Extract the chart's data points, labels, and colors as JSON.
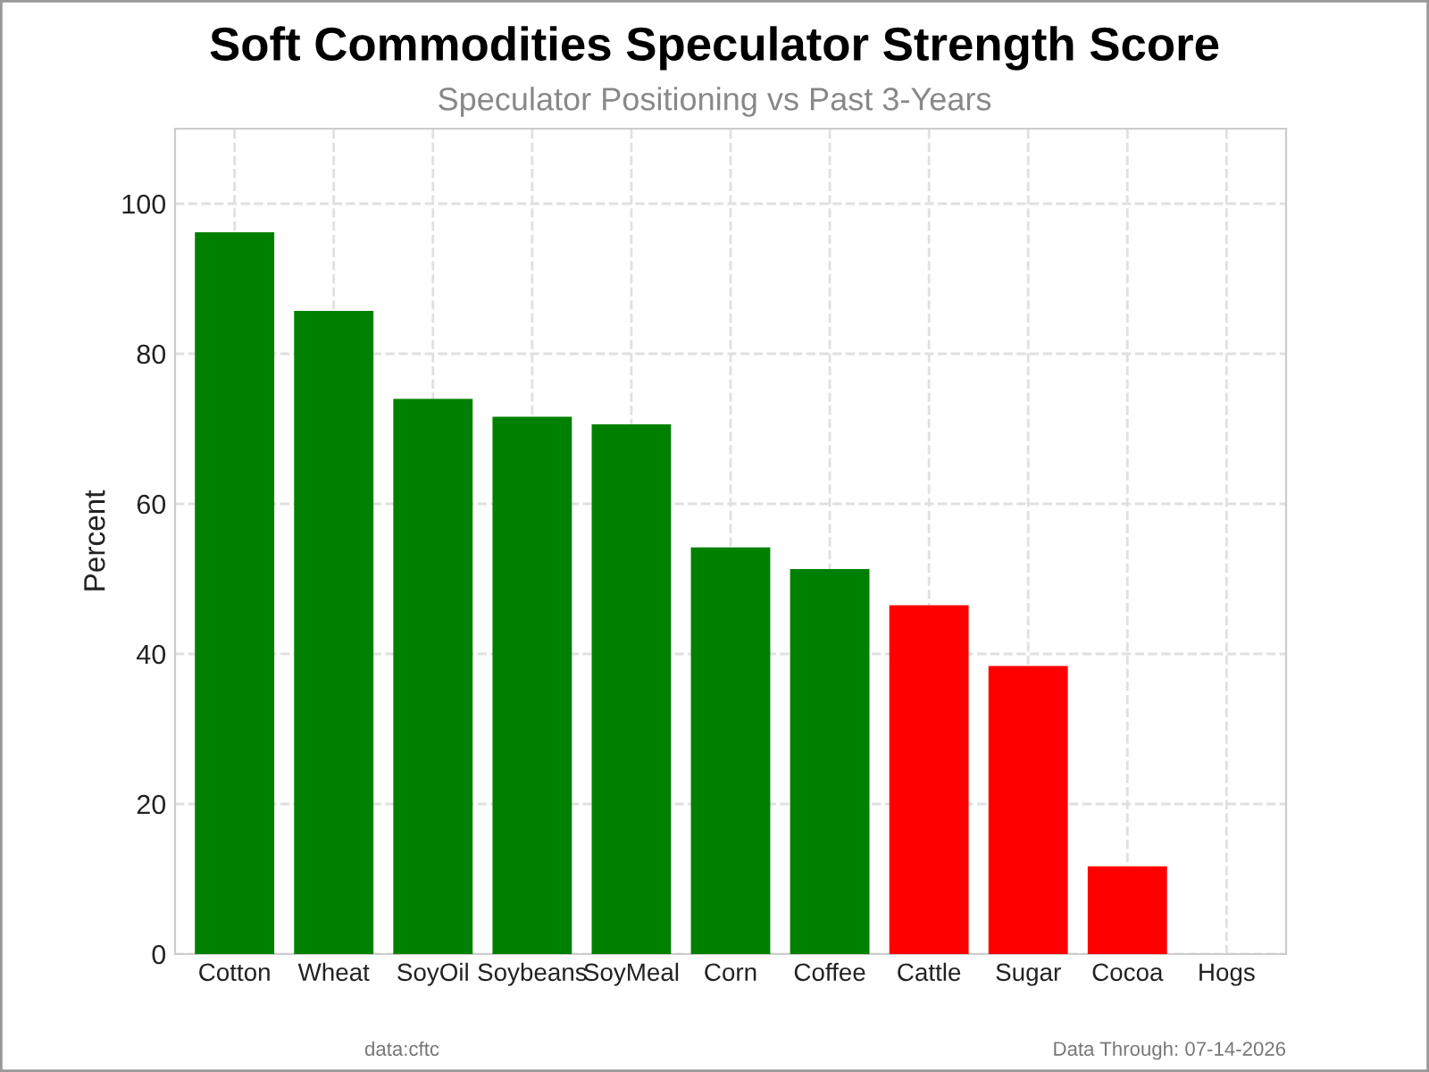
{
  "chart_data": {
    "type": "bar",
    "title": "Soft Commodities Speculator Strength Score",
    "subtitle": "Speculator Positioning vs Past 3-Years",
    "ylabel": "Percent",
    "categories": [
      "Cotton",
      "Wheat",
      "SoyOil",
      "Soybeans",
      "SoyMeal",
      "Corn",
      "Coffee",
      "Cattle",
      "Sugar",
      "Cocoa",
      "Hogs"
    ],
    "values": [
      96.2,
      85.7,
      74.0,
      71.6,
      70.6,
      54.2,
      51.3,
      46.5,
      38.4,
      11.7,
      0
    ],
    "colors": [
      "#008000",
      "#008000",
      "#008000",
      "#008000",
      "#008000",
      "#008000",
      "#008000",
      "#ff0000",
      "#ff0000",
      "#ff0000",
      "#ff0000"
    ],
    "ylim": [
      0,
      110
    ],
    "yticks": [
      0,
      20,
      40,
      60,
      80,
      100
    ],
    "grid": true,
    "annotations": [
      "data:cftc",
      "Data Through: 07-14-2026"
    ]
  }
}
